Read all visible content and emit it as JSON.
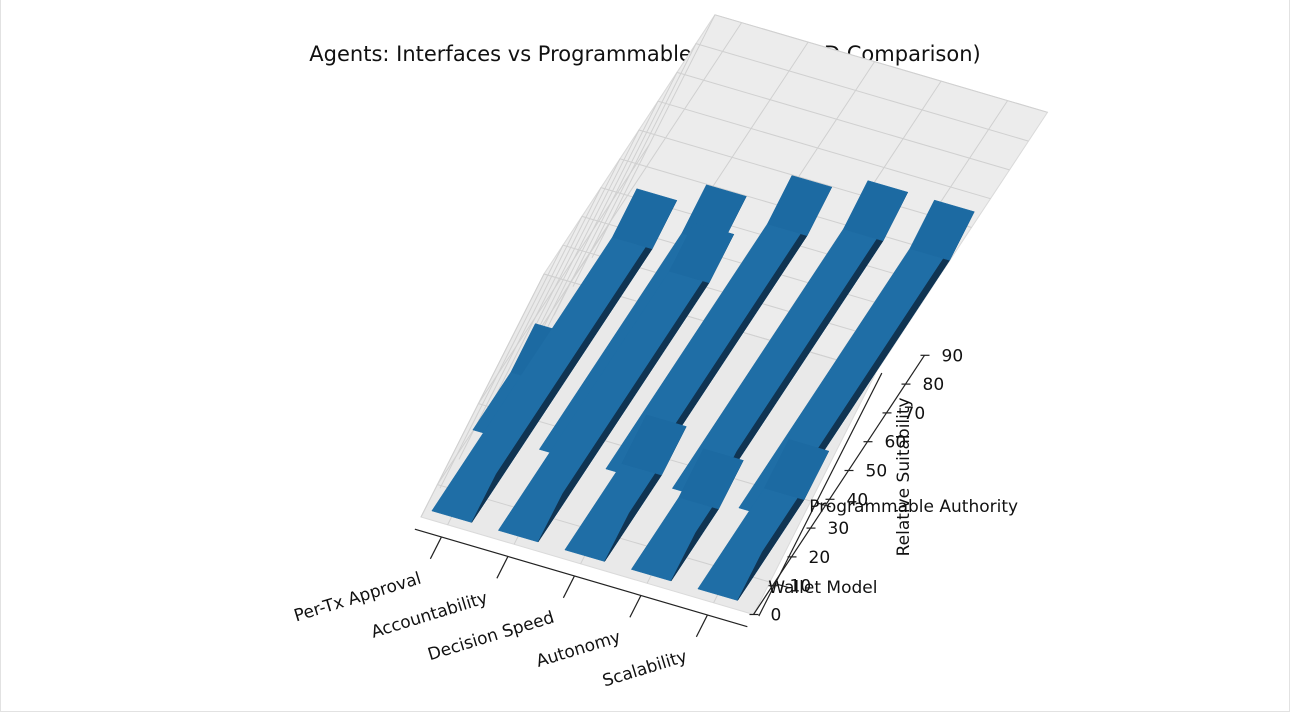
{
  "chart_data": {
    "type": "bar3d",
    "title": "Agents: Interfaces vs Programmable Authority (3D Comparison)",
    "categories": [
      "Per-Tx Approval",
      "Accountability",
      "Decision Speed",
      "Autonomy",
      "Scalability"
    ],
    "series": [
      {
        "name": "Wallet Model",
        "values": [
          95,
          90,
          30,
          25,
          35
        ]
      },
      {
        "name": "Programmable Authority",
        "values": [
          20,
          75,
          85,
          90,
          90
        ]
      }
    ],
    "zlabel": "Relative Suitability",
    "zticks": [
      0,
      10,
      20,
      30,
      40,
      50,
      60,
      70,
      80,
      90
    ],
    "zlim": [
      0,
      90
    ],
    "bar_color": "#1f77b4",
    "grid": true
  }
}
